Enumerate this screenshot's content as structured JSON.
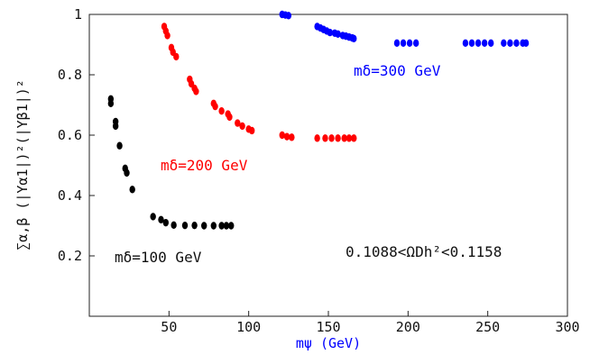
{
  "chart_data": {
    "type": "scatter",
    "title": "",
    "xlabel": "mψ (GeV)",
    "ylabel": "∑α,β (|Yα1|)²(|Yβ1|)²",
    "xlim": [
      0,
      300
    ],
    "ylim": [
      0,
      1
    ],
    "x_ticks": [
      "50",
      "100",
      "150",
      "200",
      "250",
      "300"
    ],
    "y_ticks": [
      "0.2",
      "0.4",
      "0.6",
      "0.8",
      "1"
    ],
    "grid": false,
    "annotations": {
      "relic": "0.1088<ΩDh²<0.1158",
      "m100": "mδ=100 GeV",
      "m200": "mδ=200 GeV",
      "m300": "mδ=300 GeV"
    },
    "colors": {
      "m100": "#000000",
      "m200": "#ff0000",
      "m300": "#0000ff",
      "xlabel": "#0000ff"
    },
    "series": [
      {
        "color": "#000000",
        "points": [
          [
            13.5,
            0.72
          ],
          [
            13.5,
            0.705
          ],
          [
            16.5,
            0.645
          ],
          [
            16.5,
            0.63
          ],
          [
            19,
            0.565
          ],
          [
            22.5,
            0.49
          ],
          [
            23.5,
            0.475
          ],
          [
            27,
            0.42
          ],
          [
            40,
            0.33
          ],
          [
            45,
            0.32
          ],
          [
            48,
            0.31
          ],
          [
            53,
            0.302
          ],
          [
            60,
            0.301
          ],
          [
            66,
            0.301
          ],
          [
            72,
            0.3
          ],
          [
            78,
            0.3
          ],
          [
            83,
            0.3
          ],
          [
            86,
            0.3
          ],
          [
            89,
            0.3
          ]
        ]
      },
      {
        "color": "#ff0000",
        "points": [
          [
            47,
            0.96
          ],
          [
            48,
            0.945
          ],
          [
            49,
            0.93
          ],
          [
            51.5,
            0.89
          ],
          [
            52.5,
            0.875
          ],
          [
            54.5,
            0.86
          ],
          [
            63,
            0.785
          ],
          [
            64,
            0.77
          ],
          [
            66,
            0.755
          ],
          [
            67,
            0.745
          ],
          [
            78,
            0.705
          ],
          [
            79,
            0.695
          ],
          [
            83,
            0.68
          ],
          [
            87,
            0.67
          ],
          [
            88,
            0.66
          ],
          [
            93,
            0.64
          ],
          [
            96,
            0.63
          ],
          [
            100,
            0.62
          ],
          [
            102,
            0.615
          ],
          [
            121,
            0.6
          ],
          [
            124,
            0.595
          ],
          [
            127,
            0.593
          ],
          [
            143,
            0.59
          ],
          [
            148,
            0.59
          ],
          [
            152,
            0.59
          ],
          [
            156,
            0.59
          ],
          [
            160,
            0.59
          ],
          [
            163,
            0.59
          ],
          [
            166,
            0.59
          ]
        ]
      },
      {
        "color": "#0000ff",
        "points": [
          [
            121,
            1.0
          ],
          [
            123,
            0.998
          ],
          [
            125,
            0.996
          ],
          [
            143,
            0.96
          ],
          [
            145,
            0.955
          ],
          [
            147,
            0.95
          ],
          [
            149,
            0.945
          ],
          [
            151,
            0.94
          ],
          [
            154,
            0.938
          ],
          [
            156,
            0.935
          ],
          [
            159,
            0.93
          ],
          [
            161,
            0.928
          ],
          [
            163,
            0.925
          ],
          [
            165,
            0.922
          ],
          [
            166,
            0.92
          ],
          [
            193,
            0.905
          ],
          [
            197,
            0.905
          ],
          [
            201,
            0.905
          ],
          [
            205,
            0.905
          ],
          [
            236,
            0.905
          ],
          [
            240,
            0.905
          ],
          [
            244,
            0.905
          ],
          [
            248,
            0.905
          ],
          [
            252,
            0.905
          ],
          [
            260,
            0.905
          ],
          [
            264,
            0.905
          ],
          [
            268,
            0.905
          ],
          [
            272,
            0.905
          ],
          [
            274,
            0.905
          ]
        ]
      }
    ]
  }
}
